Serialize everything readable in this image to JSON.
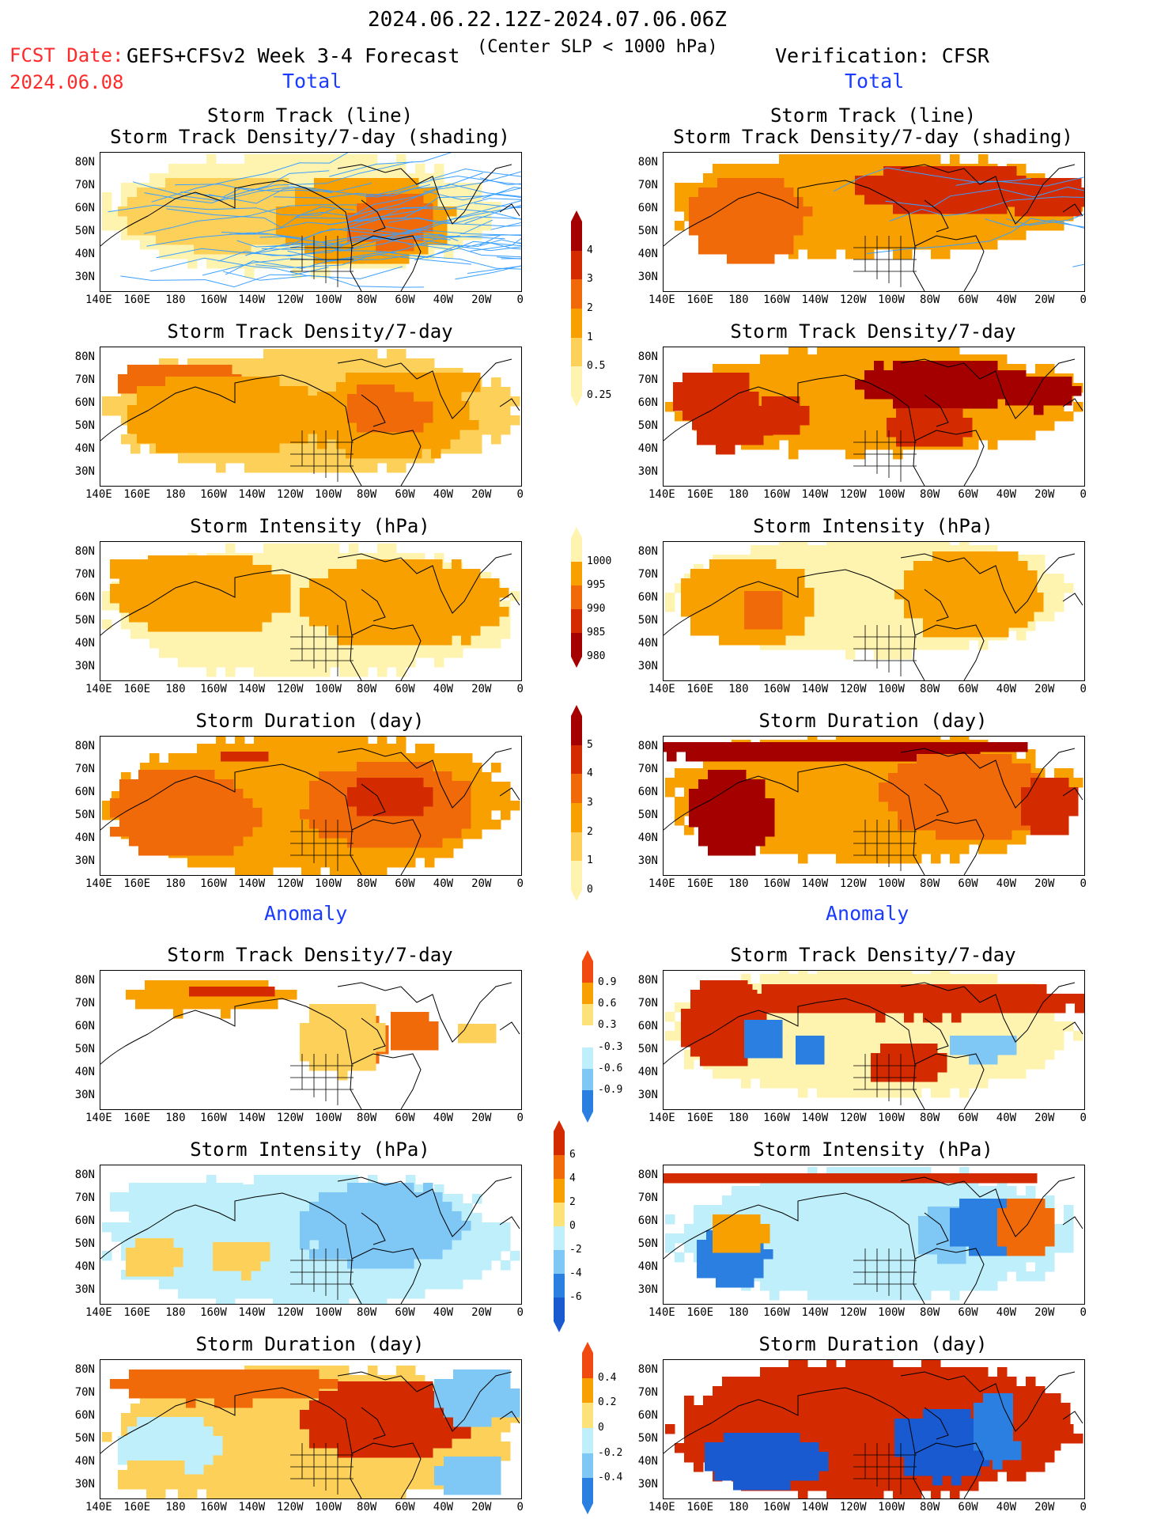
{
  "header": {
    "date_range": "2024.06.22.12Z-2024.07.06.06Z",
    "fcst_label": "FCST Date:",
    "fcst_date": "2024.06.08",
    "forecast_title": "GEFS+CFSv2 Week 3-4 Forecast",
    "condition": "(Center SLP < 1000 hPa)",
    "verification": "Verification: CFSR"
  },
  "sections": {
    "total_left": "Total",
    "total_right": "Total",
    "anomaly_left": "Anomaly",
    "anomaly_right": "Anomaly"
  },
  "panel_titles": {
    "track_line": "Storm Track (line)",
    "track_shading": "Storm Track Density/7-day (shading)",
    "density": "Storm Track Density/7-day",
    "intensity": "Storm Intensity (hPa)",
    "duration": "Storm Duration (day)"
  },
  "axes": {
    "lat_labels": [
      "80N",
      "70N",
      "60N",
      "50N",
      "40N",
      "30N"
    ],
    "lon_labels": [
      "140E",
      "160E",
      "180",
      "160W",
      "140W",
      "120W",
      "100W",
      "80W",
      "60W",
      "40W",
      "20W",
      "0"
    ]
  },
  "colorbars": {
    "density_total": {
      "labels": [
        "4",
        "3",
        "2",
        "1",
        "0.5",
        "0.25"
      ],
      "colors": [
        "#a50000",
        "#d42a00",
        "#f06a0a",
        "#f8a000",
        "#fdd05a",
        "#fff3b0"
      ]
    },
    "intensity_total": {
      "labels": [
        "1000",
        "995",
        "990",
        "985",
        "980"
      ],
      "colors": [
        "#fff3b0",
        "#f8a000",
        "#f06a0a",
        "#d42a00",
        "#a50000"
      ]
    },
    "duration_total": {
      "labels": [
        "5",
        "4",
        "3",
        "2",
        "1",
        "0"
      ],
      "colors": [
        "#a50000",
        "#d42a00",
        "#f06a0a",
        "#f8a000",
        "#fdd05a",
        "#fff3b0"
      ]
    },
    "density_anom": {
      "labels": [
        "0.9",
        "0.6",
        "0.3",
        "-0.3",
        "-0.6",
        "-0.9"
      ],
      "colors": [
        "#f04a10",
        "#f8a000",
        "#fde27a",
        "#ffffff",
        "#bfeffa",
        "#7fc7f5",
        "#2a7fe0"
      ]
    },
    "intensity_anom": {
      "labels": [
        "6",
        "4",
        "2",
        "0",
        "-2",
        "-4",
        "-6"
      ],
      "colors": [
        "#d42a00",
        "#f06a0a",
        "#f8a000",
        "#fde27a",
        "#bfeffa",
        "#7fc7f5",
        "#2a7fe0",
        "#1a5ad0"
      ]
    },
    "duration_anom": {
      "labels": [
        "0.4",
        "0.2",
        "0",
        "-0.2",
        "-0.4"
      ],
      "colors": [
        "#f04a10",
        "#f8a000",
        "#fde27a",
        "#bfeffa",
        "#7fc7f5",
        "#2a7fe0"
      ]
    }
  },
  "colors": {
    "track_line": "#3aa0ff",
    "coast": "#000000"
  }
}
